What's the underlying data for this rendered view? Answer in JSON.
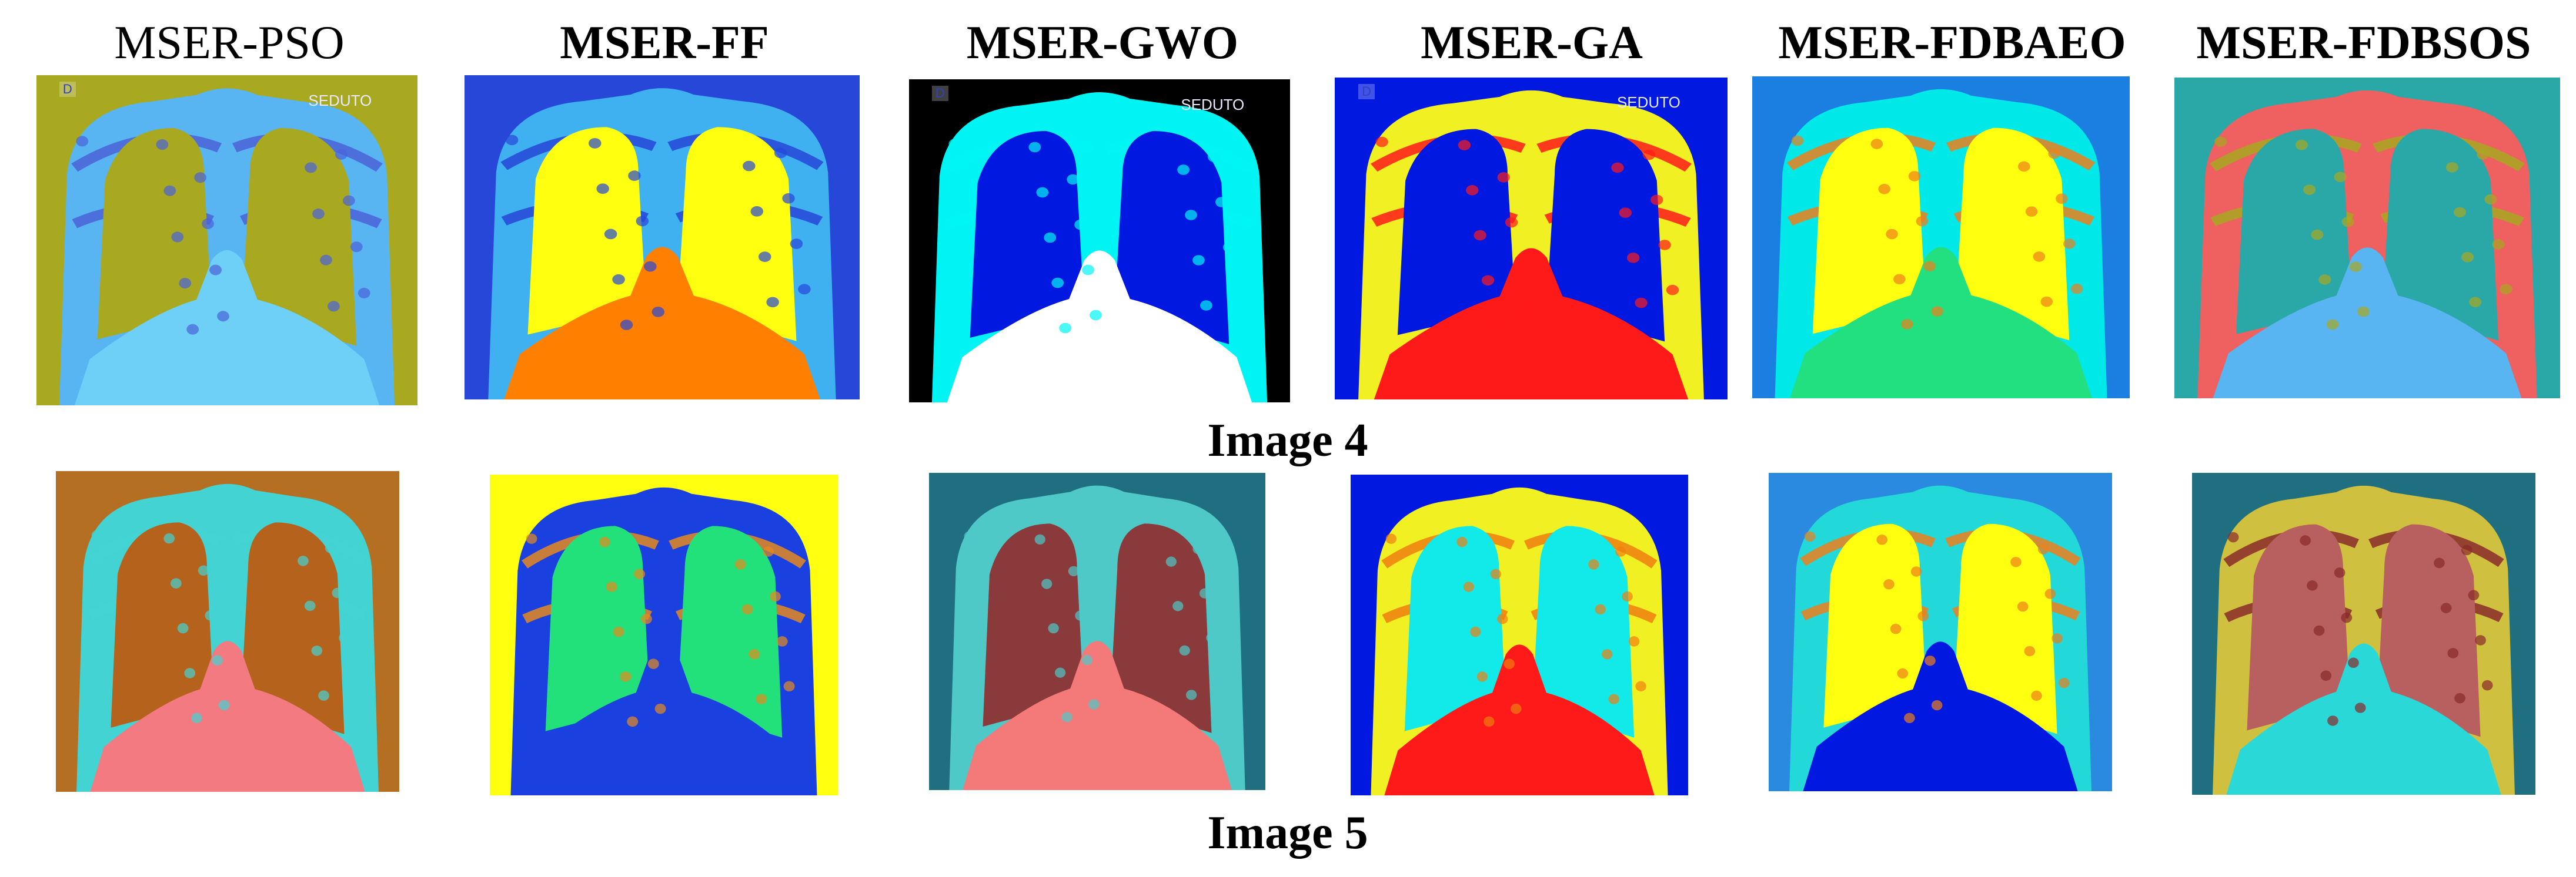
{
  "methods": [
    {
      "label": "MSER-PSO",
      "bold": false
    },
    {
      "label": "MSER-FF",
      "bold": true
    },
    {
      "label": "MSER-GWO",
      "bold": true
    },
    {
      "label": "MSER-GA",
      "bold": true
    },
    {
      "label": "MSER-FDBAEO",
      "bold": true
    },
    {
      "label": "MSER-FDBSOS",
      "bold": true
    }
  ],
  "rows": [
    {
      "caption": "Image 4",
      "panels": [
        {
          "method": "MSER-PSO",
          "palette": {
            "background": "#a8a821",
            "body": "#58b5f2",
            "lung": "#a8a821",
            "edge": "#4a63d8",
            "center": "#6fd0f7"
          },
          "overlay_text": [
            "D",
            "SEDUTO"
          ]
        },
        {
          "method": "MSER-FF",
          "palette": {
            "background": "#2747d8",
            "body": "#3fb0f0",
            "lung": "#ffff10",
            "edge": "#2747d8",
            "center": "#ff7f00"
          },
          "overlay_text": []
        },
        {
          "method": "MSER-GWO",
          "palette": {
            "background": "#000000",
            "body": "#00f4f4",
            "lung": "#0018e0",
            "edge": "#00f4f4",
            "center": "#ffffff"
          },
          "overlay_text": [
            "D",
            "SEDUTO"
          ]
        },
        {
          "method": "MSER-GA",
          "palette": {
            "background": "#0018e0",
            "body": "#f0f022",
            "lung": "#0018e0",
            "edge": "#ff1a1a",
            "center": "#ff1a1a"
          },
          "overlay_text": [
            "D",
            "SEDUTO"
          ]
        },
        {
          "method": "MSER-FDBAEO",
          "palette": {
            "background": "#1a7fe0",
            "body": "#00e8e8",
            "lung": "#ffff10",
            "edge": "#ef7f1a",
            "center": "#22e080"
          },
          "overlay_text": []
        },
        {
          "method": "MSER-FDBSOS",
          "palette": {
            "background": "#2aa8a8",
            "body": "#ef6060",
            "lung": "#2aa8a8",
            "edge": "#a8a821",
            "center": "#58b5f2"
          },
          "overlay_text": []
        }
      ]
    },
    {
      "caption": "Image 5",
      "panels": [
        {
          "method": "MSER-PSO",
          "palette": {
            "background": "#b56f23",
            "body": "#44d3d3",
            "lung": "#b5621c",
            "edge": "#44d3d3",
            "center": "#f27a80"
          },
          "overlay_text": []
        },
        {
          "method": "MSER-FF",
          "palette": {
            "background": "#ffff10",
            "body": "#1b40e0",
            "lung": "#22e07a",
            "edge": "#e58a1c",
            "center": "#1b40e0"
          },
          "overlay_text": []
        },
        {
          "method": "MSER-GWO",
          "palette": {
            "background": "#1f6f80",
            "body": "#4fc8c8",
            "lung": "#8a3a3a",
            "edge": "#4fc8c8",
            "center": "#f47a7a"
          },
          "overlay_text": []
        },
        {
          "method": "MSER-GA",
          "palette": {
            "background": "#0018e0",
            "body": "#f0f022",
            "lung": "#12eaea",
            "edge": "#f07f10",
            "center": "#ff1a1a"
          },
          "overlay_text": []
        },
        {
          "method": "MSER-FDBAEO",
          "palette": {
            "background": "#2a8ae0",
            "body": "#22d8d8",
            "lung": "#ffff10",
            "edge": "#ef7f1a",
            "center": "#0018e0"
          },
          "overlay_text": []
        },
        {
          "method": "MSER-FDBSOS",
          "palette": {
            "background": "#1f6f80",
            "body": "#cfc040",
            "lung": "#b86060",
            "edge": "#8a2a2a",
            "center": "#2ad8d8"
          },
          "overlay_text": []
        }
      ]
    }
  ]
}
